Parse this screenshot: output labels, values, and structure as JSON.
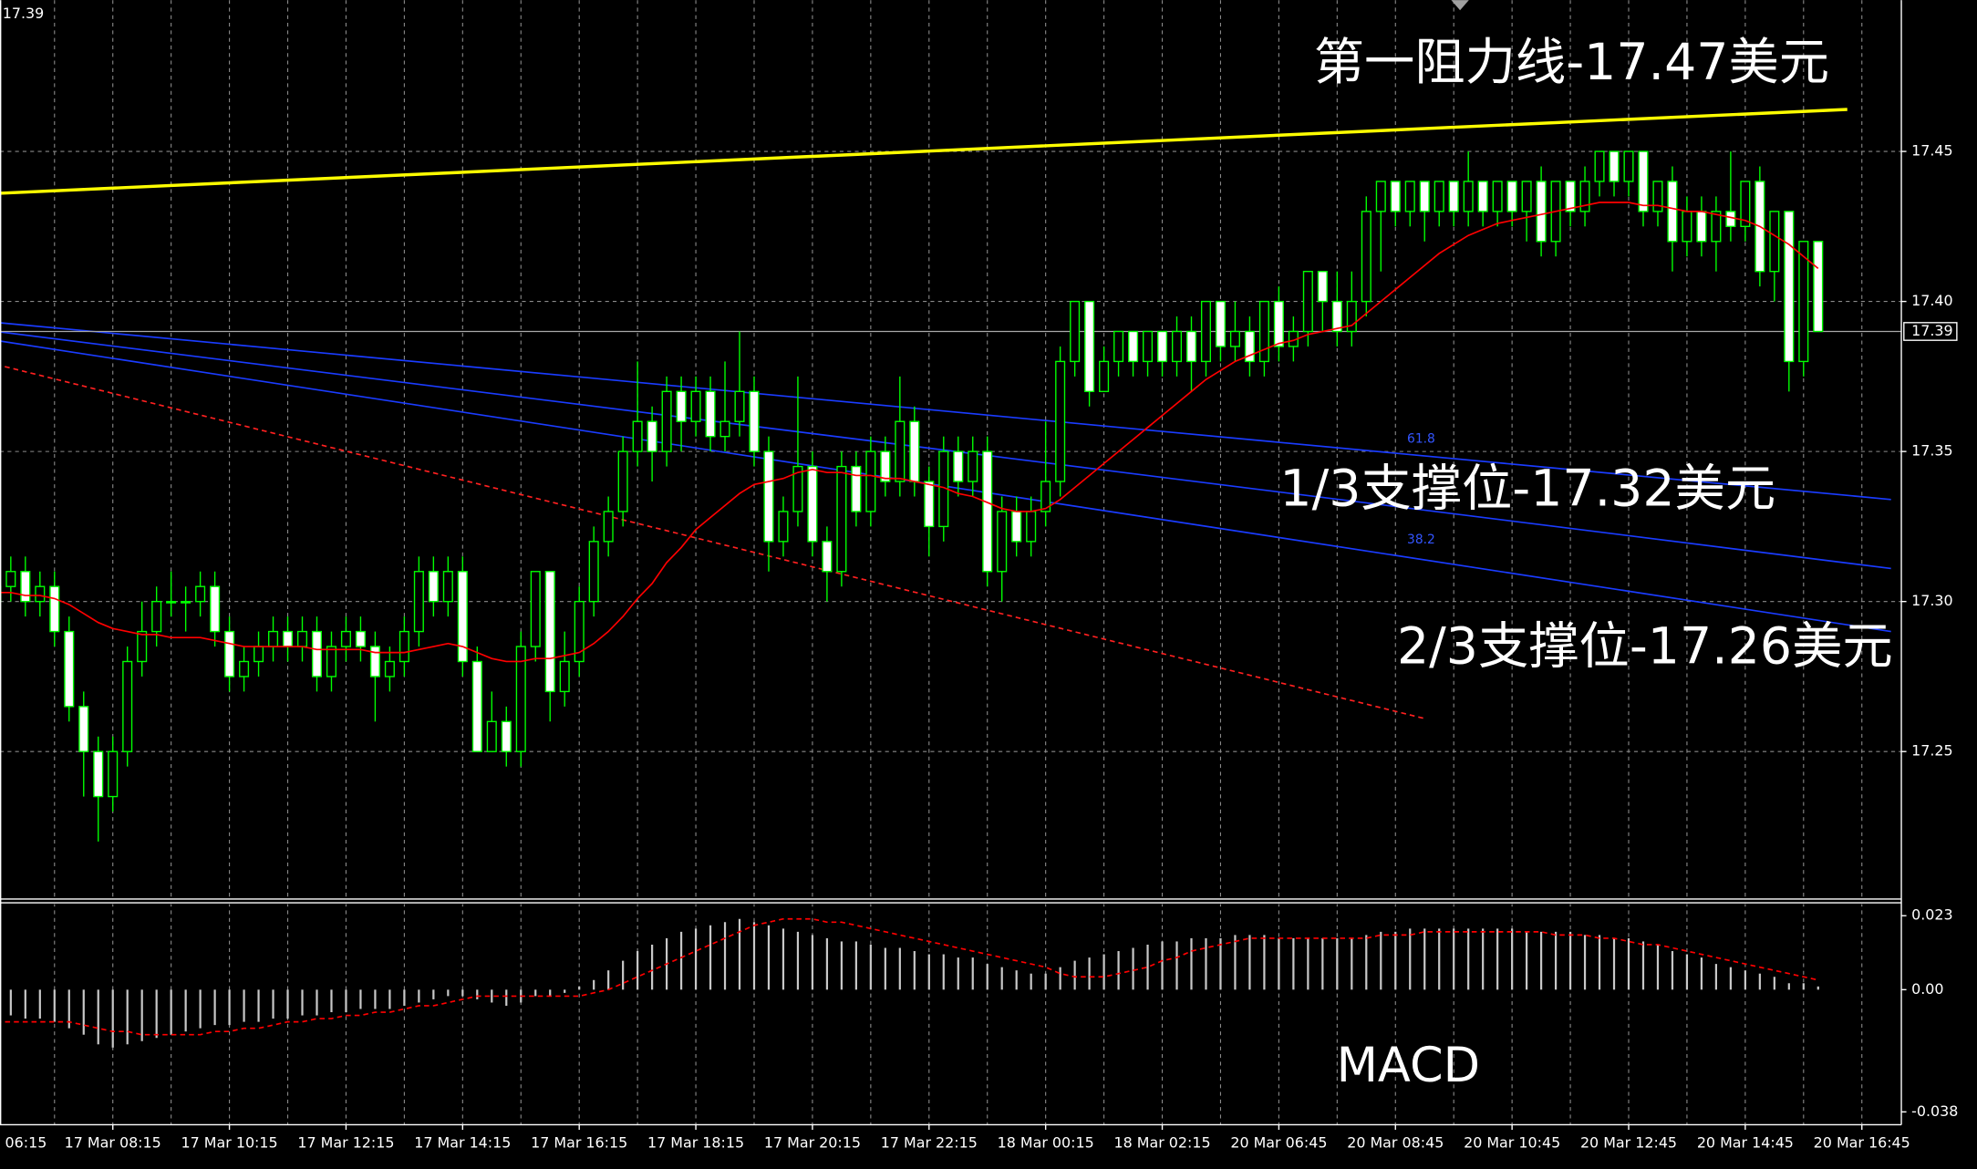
{
  "chart_data": [
    {
      "type": "candlestick",
      "categories": [
        "06:15",
        null,
        null,
        null,
        null,
        null,
        null,
        null,
        "17 Mar 08:15",
        null,
        null,
        null,
        null,
        null,
        null,
        null,
        "17 Mar 10:15",
        null,
        null,
        null,
        null,
        null,
        null,
        null,
        "17 Mar 12:15",
        null,
        null,
        null,
        null,
        null,
        null,
        null,
        "17 Mar 14:15",
        null,
        null,
        null,
        null,
        null,
        null,
        null,
        "17 Mar 16:15",
        null,
        null,
        null,
        null,
        null,
        null,
        null,
        "17 Mar 18:15",
        null,
        null,
        null,
        null,
        null,
        null,
        null,
        "17 Mar 20:15",
        null,
        null,
        null,
        null,
        null,
        null,
        null,
        "17 Mar 22:15",
        null,
        null,
        null,
        null,
        null,
        null,
        null,
        "18 Mar 00:15",
        null,
        null,
        null,
        null,
        null,
        null,
        null,
        "18 Mar 02:15",
        null,
        null,
        null,
        null,
        null,
        null,
        null,
        "20 Mar 06:45",
        null,
        null,
        null,
        null,
        null,
        null,
        null,
        "20 Mar 08:45",
        null,
        null,
        null,
        null,
        null,
        null,
        null,
        "20 Mar 10:45",
        null,
        null,
        null,
        null,
        null,
        null,
        null,
        "20 Mar 12:45",
        null,
        null,
        null,
        null,
        null,
        null,
        null,
        "20 Mar 14:45",
        null,
        null,
        null,
        null,
        null,
        null,
        null,
        "20 Mar 16:45"
      ],
      "open": [
        17.3,
        17.305,
        17.31,
        17.3,
        17.305,
        17.29,
        17.265,
        17.25,
        17.235,
        17.25,
        17.28,
        17.29,
        17.3,
        17.3,
        17.3,
        17.305,
        17.29,
        17.275,
        17.28,
        17.285,
        17.29,
        17.285,
        17.29,
        17.275,
        17.285,
        17.29,
        17.285,
        17.275,
        17.28,
        17.29,
        17.31,
        17.3,
        17.31,
        17.28,
        17.25,
        17.26,
        17.25,
        17.285,
        17.31,
        17.27,
        17.28,
        17.3,
        17.32,
        17.33,
        17.35,
        17.36,
        17.35,
        17.37,
        17.36,
        17.37,
        17.355,
        17.36,
        17.37,
        17.35,
        17.32,
        17.33,
        17.345,
        17.32,
        17.31,
        17.345,
        17.33,
        17.35,
        17.34,
        17.36,
        17.34,
        17.325,
        17.35,
        17.34,
        17.35,
        17.31,
        17.33,
        17.32,
        17.33,
        17.34,
        17.38,
        17.4,
        17.37,
        17.38,
        17.39,
        17.38,
        17.39,
        17.38,
        17.39,
        17.38,
        17.4,
        17.385,
        17.39,
        17.38,
        17.4,
        17.385,
        17.39,
        17.41,
        17.4,
        17.39,
        17.4,
        17.43,
        17.44,
        17.43,
        17.44,
        17.43,
        17.44,
        17.43,
        17.44,
        17.43,
        17.44,
        17.43,
        17.44,
        17.42,
        17.44,
        17.43,
        17.44,
        17.45,
        17.44,
        17.45,
        17.43,
        17.44,
        17.42,
        17.43,
        17.42,
        17.43,
        17.425,
        17.44,
        17.41,
        17.43,
        17.38,
        17.42,
        null,
        null,
        null
      ],
      "high": [
        17.31,
        17.315,
        17.315,
        17.31,
        17.31,
        17.295,
        17.27,
        17.255,
        17.255,
        17.285,
        17.3,
        17.305,
        17.31,
        17.305,
        17.31,
        17.31,
        17.295,
        17.285,
        17.29,
        17.295,
        17.295,
        17.295,
        17.295,
        17.29,
        17.295,
        17.295,
        17.29,
        17.285,
        17.295,
        17.315,
        17.315,
        17.315,
        17.315,
        17.285,
        17.27,
        17.265,
        17.29,
        17.31,
        17.31,
        17.29,
        17.305,
        17.325,
        17.335,
        17.355,
        17.38,
        17.365,
        17.375,
        17.375,
        17.375,
        17.375,
        17.38,
        17.39,
        17.375,
        17.355,
        17.335,
        17.375,
        17.35,
        17.325,
        17.35,
        17.35,
        17.355,
        17.355,
        17.375,
        17.365,
        17.345,
        17.355,
        17.355,
        17.355,
        17.355,
        17.335,
        17.335,
        17.335,
        17.36,
        17.385,
        17.4,
        17.4,
        17.385,
        17.39,
        17.39,
        17.39,
        17.39,
        17.395,
        17.395,
        17.4,
        17.4,
        17.4,
        17.395,
        17.4,
        17.405,
        17.395,
        17.41,
        17.41,
        17.41,
        17.41,
        17.435,
        17.44,
        17.44,
        17.44,
        17.44,
        17.44,
        17.44,
        17.45,
        17.44,
        17.44,
        17.44,
        17.44,
        17.445,
        17.44,
        17.44,
        17.445,
        17.45,
        17.45,
        17.45,
        17.45,
        17.44,
        17.445,
        17.435,
        17.435,
        17.435,
        17.45,
        17.44,
        17.445,
        17.43,
        17.43,
        17.42,
        17.42,
        null,
        null,
        null
      ],
      "low": [
        17.295,
        17.3,
        17.295,
        17.295,
        17.285,
        17.26,
        17.235,
        17.22,
        17.23,
        17.245,
        17.275,
        17.285,
        17.295,
        17.29,
        17.295,
        17.285,
        17.27,
        17.27,
        17.275,
        17.28,
        17.28,
        17.28,
        17.27,
        17.27,
        17.28,
        17.28,
        17.26,
        17.27,
        17.275,
        17.285,
        17.295,
        17.295,
        17.275,
        17.25,
        17.25,
        17.245,
        17.245,
        17.28,
        17.26,
        17.265,
        17.275,
        17.295,
        17.315,
        17.325,
        17.345,
        17.34,
        17.345,
        17.35,
        17.355,
        17.35,
        17.35,
        17.355,
        17.345,
        17.31,
        17.315,
        17.325,
        17.315,
        17.3,
        17.305,
        17.325,
        17.325,
        17.335,
        17.335,
        17.335,
        17.315,
        17.32,
        17.335,
        17.335,
        17.305,
        17.3,
        17.315,
        17.315,
        17.325,
        17.335,
        17.375,
        17.365,
        17.37,
        17.375,
        17.375,
        17.375,
        17.375,
        17.375,
        17.37,
        17.375,
        17.38,
        17.38,
        17.375,
        17.375,
        17.38,
        17.38,
        17.385,
        17.39,
        17.385,
        17.385,
        17.395,
        17.41,
        17.425,
        17.425,
        17.42,
        17.425,
        17.425,
        17.425,
        17.425,
        17.425,
        17.425,
        17.42,
        17.415,
        17.415,
        17.425,
        17.425,
        17.435,
        17.435,
        17.435,
        17.425,
        17.425,
        17.41,
        17.415,
        17.415,
        17.41,
        17.42,
        17.42,
        17.405,
        17.4,
        17.37,
        17.375,
        17.39,
        null,
        null,
        null
      ],
      "close": [
        17.305,
        17.31,
        17.3,
        17.305,
        17.29,
        17.265,
        17.25,
        17.235,
        17.25,
        17.28,
        17.29,
        17.3,
        17.3,
        17.3,
        17.305,
        17.29,
        17.275,
        17.28,
        17.285,
        17.29,
        17.285,
        17.29,
        17.275,
        17.285,
        17.29,
        17.285,
        17.275,
        17.28,
        17.29,
        17.31,
        17.3,
        17.31,
        17.28,
        17.25,
        17.26,
        17.25,
        17.285,
        17.31,
        17.27,
        17.28,
        17.3,
        17.32,
        17.33,
        17.35,
        17.36,
        17.35,
        17.37,
        17.36,
        17.37,
        17.355,
        17.36,
        17.37,
        17.35,
        17.32,
        17.33,
        17.345,
        17.32,
        17.31,
        17.345,
        17.33,
        17.35,
        17.34,
        17.36,
        17.34,
        17.325,
        17.35,
        17.34,
        17.35,
        17.31,
        17.33,
        17.32,
        17.33,
        17.34,
        17.38,
        17.4,
        17.37,
        17.38,
        17.39,
        17.38,
        17.39,
        17.38,
        17.39,
        17.38,
        17.4,
        17.385,
        17.39,
        17.38,
        17.4,
        17.385,
        17.39,
        17.41,
        17.4,
        17.39,
        17.4,
        17.43,
        17.44,
        17.43,
        17.44,
        17.43,
        17.44,
        17.43,
        17.44,
        17.43,
        17.44,
        17.43,
        17.44,
        17.42,
        17.44,
        17.43,
        17.44,
        17.45,
        17.44,
        17.45,
        17.43,
        17.44,
        17.42,
        17.43,
        17.42,
        17.43,
        17.425,
        17.44,
        17.41,
        17.43,
        17.38,
        17.42,
        17.39,
        null,
        null,
        null
      ],
      "candle_line_color": "#00ff00",
      "bull_fill": "#000000",
      "bear_fill": "#ffffff",
      "moving_average": {
        "color": "#ff0000",
        "values": [
          17.303,
          17.303,
          17.302,
          17.302,
          17.301,
          17.299,
          17.296,
          17.293,
          17.291,
          17.29,
          17.289,
          17.289,
          17.288,
          17.288,
          17.288,
          17.287,
          17.286,
          17.285,
          17.285,
          17.285,
          17.285,
          17.285,
          17.284,
          17.284,
          17.284,
          17.284,
          17.283,
          17.283,
          17.283,
          17.284,
          17.285,
          17.286,
          17.285,
          17.283,
          17.281,
          17.28,
          17.28,
          17.281,
          17.281,
          17.282,
          17.283,
          17.286,
          17.29,
          17.295,
          17.301,
          17.306,
          17.313,
          17.318,
          17.324,
          17.328,
          17.332,
          17.336,
          17.339,
          17.34,
          17.341,
          17.343,
          17.344,
          17.343,
          17.343,
          17.342,
          17.342,
          17.341,
          17.341,
          17.34,
          17.339,
          17.338,
          17.336,
          17.335,
          17.333,
          17.331,
          17.33,
          17.33,
          17.331,
          17.334,
          17.338,
          17.342,
          17.346,
          17.35,
          17.354,
          17.358,
          17.362,
          17.366,
          17.37,
          17.374,
          17.377,
          17.38,
          17.382,
          17.384,
          17.386,
          17.387,
          17.389,
          17.39,
          17.391,
          17.392,
          17.396,
          17.4,
          17.404,
          17.408,
          17.412,
          17.416,
          17.419,
          17.422,
          17.424,
          17.426,
          17.427,
          17.428,
          17.429,
          17.43,
          17.431,
          17.432,
          17.433,
          17.433,
          17.433,
          17.432,
          17.432,
          17.431,
          17.43,
          17.43,
          17.429,
          17.428,
          17.427,
          17.425,
          17.422,
          17.419,
          17.415,
          17.411,
          null,
          null,
          null
        ]
      },
      "trend_lines": [
        {
          "color": "#ffff00",
          "x": [
            0,
            127
          ],
          "y": [
            17.436,
            17.464
          ]
        },
        {
          "color": "#1a3cff",
          "x": [
            0,
            130
          ],
          "y": [
            17.393,
            17.334
          ]
        },
        {
          "color": "#1a3cff",
          "x": [
            0,
            130
          ],
          "y": [
            17.39,
            17.311
          ]
        },
        {
          "color": "#1a3cff",
          "x": [
            0,
            130
          ],
          "y": [
            17.387,
            17.29
          ]
        },
        {
          "color": "#ff2020",
          "x": [
            0,
            98
          ],
          "y": [
            17.379,
            17.261
          ],
          "dashed": true
        }
      ],
      "fib_labels": [
        61.8,
        38.2
      ],
      "annotations": [
        "第一阻力线-17.47美元",
        "1/3支撑位-17.32美元",
        "2/3支撑位-17.26美元"
      ],
      "last_price": 17.39,
      "ylim": [
        17.2,
        17.5
      ],
      "yticks": [
        17.25,
        {
          "value": 17.3,
          "label": "17.30"
        },
        17.35,
        {
          "value": 17.4,
          "label": "17.40"
        },
        17.45
      ],
      "grid": true
    },
    {
      "type": "macd",
      "title": "MACD",
      "histogram": {
        "color": "#c8c8c8",
        "values": [
          -0.008,
          -0.008,
          -0.009,
          -0.009,
          -0.01,
          -0.012,
          -0.014,
          -0.017,
          -0.018,
          -0.017,
          -0.016,
          -0.015,
          -0.014,
          -0.013,
          -0.012,
          -0.011,
          -0.011,
          -0.01,
          -0.01,
          -0.009,
          -0.009,
          -0.008,
          -0.008,
          -0.007,
          -0.007,
          -0.006,
          -0.006,
          -0.006,
          -0.005,
          -0.004,
          -0.003,
          -0.002,
          -0.002,
          -0.003,
          -0.004,
          -0.005,
          -0.004,
          -0.002,
          -0.002,
          -0.001,
          0.001,
          0.003,
          0.006,
          0.009,
          0.012,
          0.014,
          0.016,
          0.018,
          0.019,
          0.02,
          0.021,
          0.022,
          0.021,
          0.02,
          0.019,
          0.018,
          0.017,
          0.016,
          0.015,
          0.015,
          0.014,
          0.013,
          0.013,
          0.012,
          0.011,
          0.011,
          0.01,
          0.01,
          0.008,
          0.007,
          0.006,
          0.005,
          0.005,
          0.007,
          0.009,
          0.01,
          0.011,
          0.012,
          0.013,
          0.014,
          0.015,
          0.015,
          0.016,
          0.016,
          0.016,
          0.017,
          0.017,
          0.017,
          0.016,
          0.016,
          0.016,
          0.016,
          0.016,
          0.016,
          0.017,
          0.018,
          0.018,
          0.019,
          0.019,
          0.019,
          0.019,
          0.019,
          0.019,
          0.019,
          0.019,
          0.018,
          0.018,
          0.018,
          0.018,
          0.017,
          0.017,
          0.016,
          0.016,
          0.015,
          0.014,
          0.012,
          0.011,
          0.01,
          0.008,
          0.007,
          0.006,
          0.005,
          0.004,
          0.002,
          0.002,
          0.001,
          null,
          null,
          null
        ]
      },
      "signal": {
        "color": "#ff0000",
        "values": [
          -0.01,
          -0.01,
          -0.01,
          -0.01,
          -0.01,
          -0.01,
          -0.011,
          -0.012,
          -0.013,
          -0.013,
          -0.014,
          -0.014,
          -0.014,
          -0.014,
          -0.014,
          -0.013,
          -0.013,
          -0.012,
          -0.012,
          -0.011,
          -0.01,
          -0.01,
          -0.009,
          -0.009,
          -0.008,
          -0.008,
          -0.007,
          -0.007,
          -0.006,
          -0.005,
          -0.005,
          -0.004,
          -0.003,
          -0.002,
          -0.002,
          -0.002,
          -0.002,
          -0.002,
          -0.002,
          -0.002,
          -0.002,
          -0.001,
          0.0,
          0.002,
          0.004,
          0.006,
          0.008,
          0.01,
          0.012,
          0.014,
          0.016,
          0.018,
          0.02,
          0.021,
          0.022,
          0.022,
          0.022,
          0.021,
          0.021,
          0.02,
          0.019,
          0.018,
          0.017,
          0.016,
          0.015,
          0.014,
          0.013,
          0.012,
          0.011,
          0.01,
          0.009,
          0.008,
          0.007,
          0.005,
          0.004,
          0.004,
          0.004,
          0.005,
          0.006,
          0.007,
          0.009,
          0.01,
          0.012,
          0.013,
          0.014,
          0.015,
          0.016,
          0.016,
          0.016,
          0.016,
          0.016,
          0.016,
          0.016,
          0.016,
          0.016,
          0.017,
          0.017,
          0.017,
          0.018,
          0.018,
          0.018,
          0.018,
          0.018,
          0.018,
          0.018,
          0.018,
          0.018,
          0.017,
          0.017,
          0.017,
          0.016,
          0.016,
          0.015,
          0.014,
          0.014,
          0.013,
          0.012,
          0.011,
          0.01,
          0.009,
          0.008,
          0.007,
          0.006,
          0.005,
          0.004,
          0.003,
          null,
          null,
          null
        ]
      },
      "ylim": [
        -0.042,
        0.027
      ],
      "yticks": [
        0.023,
        {
          "value": 0,
          "label": "0.00"
        },
        -0.038
      ]
    }
  ]
}
